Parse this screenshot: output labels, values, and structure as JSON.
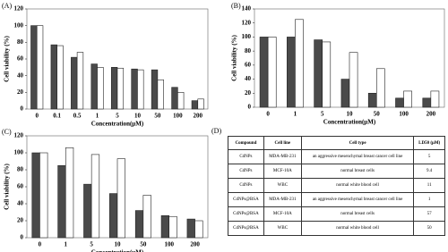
{
  "chart_data": [
    {
      "type": "bar",
      "label": "(A)",
      "x_label": "Concentration(μM)",
      "y_label": "Cell viability (%)",
      "categories": [
        "0",
        "0.1",
        "0.5",
        "1",
        "5",
        "10",
        "50",
        "100",
        "200"
      ],
      "series": [
        {
          "color": "#4a4a4a",
          "values": [
            100,
            77,
            62,
            54,
            50,
            48,
            47,
            26,
            10
          ]
        },
        {
          "color": "#ffffff",
          "values": [
            100,
            76,
            68,
            50,
            49,
            47,
            35,
            20,
            12
          ]
        }
      ],
      "ylim": [
        0,
        120
      ],
      "yticks": [
        0,
        20,
        40,
        60,
        80,
        100,
        120
      ]
    },
    {
      "type": "bar",
      "label": "(B)",
      "x_label": "Concentration(μM)",
      "y_label": "Cell viability (%)",
      "categories": [
        "0",
        "1",
        "5",
        "10",
        "50",
        "100",
        "200"
      ],
      "series": [
        {
          "color": "#4a4a4a",
          "values": [
            100,
            100,
            96,
            40,
            20,
            13,
            13
          ]
        },
        {
          "color": "#ffffff",
          "values": [
            100,
            125,
            93,
            78,
            55,
            23,
            23
          ]
        }
      ],
      "ylim": [
        0,
        140
      ],
      "yticks": [
        0,
        20,
        40,
        60,
        80,
        100,
        120,
        140
      ]
    },
    {
      "type": "bar",
      "label": "(C)",
      "x_label": "Concentration(μM)",
      "y_label": "Cell viability (%)",
      "categories": [
        "0",
        "1",
        "5",
        "10",
        "50",
        "100",
        "200"
      ],
      "series": [
        {
          "color": "#4a4a4a",
          "values": [
            100,
            85,
            63,
            52,
            32,
            26,
            22
          ]
        },
        {
          "color": "#ffffff",
          "values": [
            100,
            106,
            98,
            93,
            50,
            25,
            20
          ]
        }
      ],
      "ylim": [
        0,
        120
      ],
      "yticks": [
        0,
        20,
        40,
        60,
        80,
        100,
        120
      ]
    }
  ],
  "table": {
    "label": "(D)",
    "header": [
      "Compound",
      "Cell line",
      "Cell type",
      "LD50 (μM)"
    ],
    "rows": [
      [
        "CdNPs",
        "MDA-MB-231",
        "an aggressive mesenchymal breast cancer cell line",
        "5"
      ],
      [
        "CdNPs",
        "MCF-10A",
        "normal breast cells",
        "9.4"
      ],
      [
        "CdNPs",
        "WBC",
        "normal white blood cell",
        "11"
      ],
      [
        "CdNPs@BSA",
        "MDA-MB-231",
        "an aggressive mesenchymal breast cancer cell line",
        "1"
      ],
      [
        "CdNPs@BSA",
        "MCF-10A",
        "normal breast cells",
        "57"
      ],
      [
        "CdNPs@BSA",
        "WBC",
        "normal white blood cell",
        "50"
      ]
    ]
  }
}
